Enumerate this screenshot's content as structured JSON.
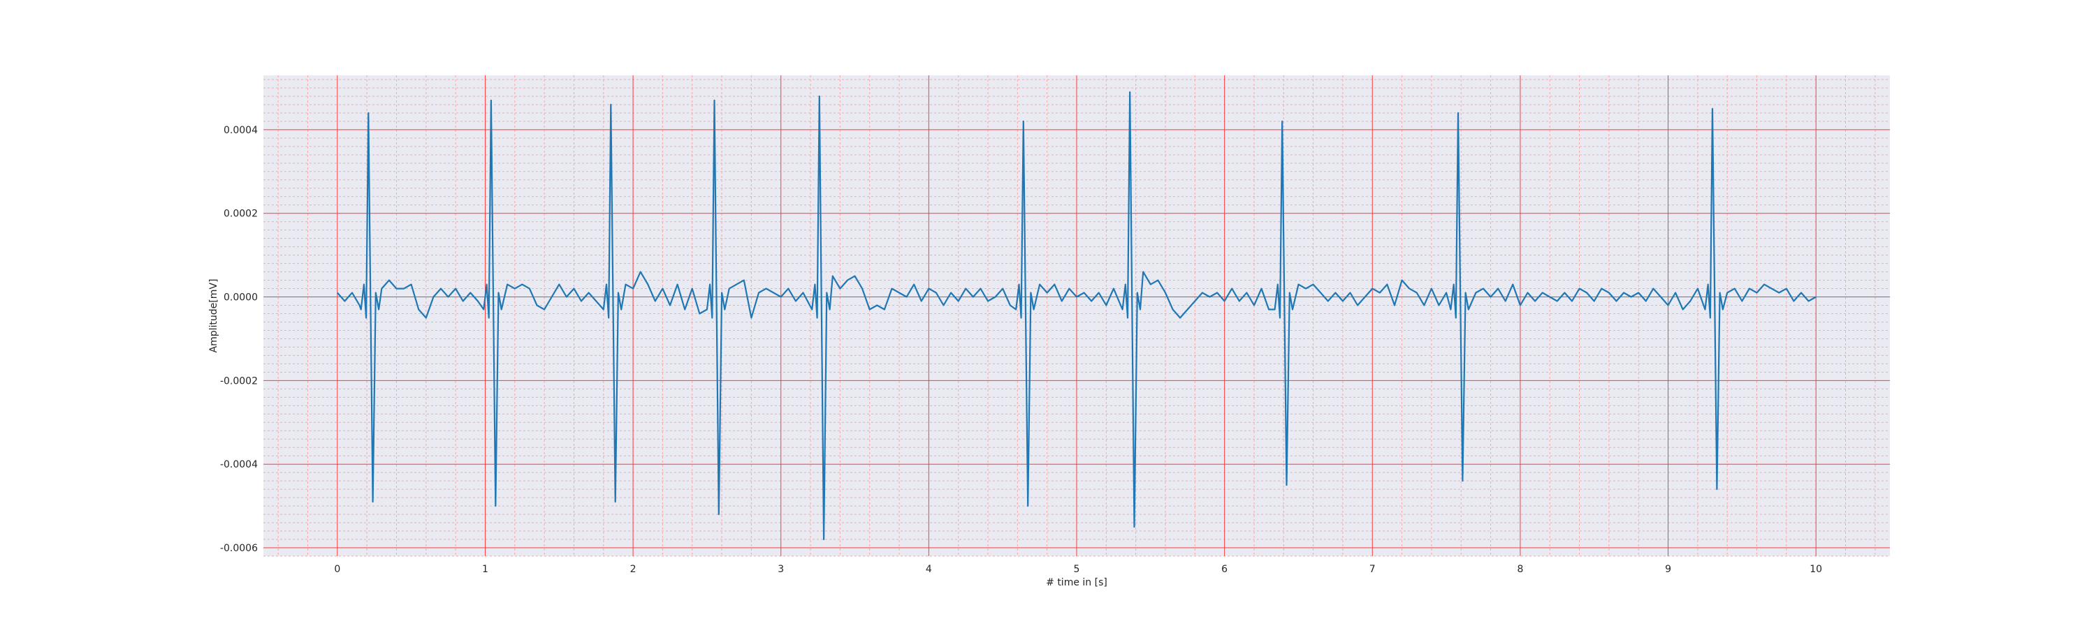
{
  "chart_data": {
    "type": "line",
    "title": "",
    "xlabel": "# time in [s]",
    "ylabel": "Amplitude[mV]",
    "xlim": [
      -0.5,
      10.5
    ],
    "ylim": [
      -0.00062,
      0.00053
    ],
    "xticks": [
      0,
      1,
      2,
      3,
      4,
      5,
      6,
      7,
      8,
      9,
      10
    ],
    "xtick_labels": [
      "0",
      "1",
      "2",
      "3",
      "4",
      "5",
      "6",
      "7",
      "8",
      "9",
      "10"
    ],
    "yticks": [
      -0.0006,
      -0.0004,
      -0.0002,
      0.0,
      0.0002,
      0.0004
    ],
    "ytick_labels": [
      "-0.0006",
      "-0.0004",
      "-0.0002",
      "0.0000",
      "0.0002",
      "0.0004"
    ],
    "grid": true,
    "grid_major_color": "#ff3b3b",
    "grid_minor_color": "#f2aaaa",
    "background_color": "#eaeaf2",
    "line_color": "#1f77b4",
    "series": [
      {
        "beats": [
          {
            "x": 0.21,
            "peak": 0.00044,
            "trough": -0.00049
          },
          {
            "x": 1.04,
            "peak": 0.00047,
            "trough": -0.0005
          },
          {
            "x": 1.85,
            "peak": 0.00046,
            "trough": -0.00049
          },
          {
            "x": 2.55,
            "peak": 0.00047,
            "trough": -0.00052
          },
          {
            "x": 3.26,
            "peak": 0.00048,
            "trough": -0.00058
          },
          {
            "x": 4.64,
            "peak": 0.00042,
            "trough": -0.0005
          },
          {
            "x": 5.36,
            "peak": 0.00049,
            "trough": -0.00055
          },
          {
            "x": 6.39,
            "peak": 0.00042,
            "trough": -0.00045
          },
          {
            "x": 7.58,
            "peak": 0.00044,
            "trough": -0.00044
          },
          {
            "x": 9.3,
            "peak": 0.00045,
            "trough": -0.00046
          }
        ],
        "baseline": [
          [
            0.0,
            1e-05
          ],
          [
            0.05,
            -1e-05
          ],
          [
            0.1,
            1e-05
          ],
          [
            0.15,
            -2e-05
          ],
          [
            0.3,
            2e-05
          ],
          [
            0.35,
            4e-05
          ],
          [
            0.4,
            2e-05
          ],
          [
            0.45,
            2e-05
          ],
          [
            0.5,
            3e-05
          ],
          [
            0.55,
            -3e-05
          ],
          [
            0.6,
            -5e-05
          ],
          [
            0.65,
            0.0
          ],
          [
            0.7,
            2e-05
          ],
          [
            0.75,
            0.0
          ],
          [
            0.8,
            2e-05
          ],
          [
            0.85,
            -1e-05
          ],
          [
            0.9,
            1e-05
          ],
          [
            0.95,
            -1e-05
          ],
          [
            1.15,
            3e-05
          ],
          [
            1.2,
            2e-05
          ],
          [
            1.25,
            3e-05
          ],
          [
            1.3,
            2e-05
          ],
          [
            1.35,
            -2e-05
          ],
          [
            1.4,
            -3e-05
          ],
          [
            1.45,
            0.0
          ],
          [
            1.5,
            3e-05
          ],
          [
            1.55,
            0.0
          ],
          [
            1.6,
            2e-05
          ],
          [
            1.65,
            -1e-05
          ],
          [
            1.7,
            1e-05
          ],
          [
            1.75,
            -1e-05
          ],
          [
            1.95,
            3e-05
          ],
          [
            2.0,
            2e-05
          ],
          [
            2.05,
            6e-05
          ],
          [
            2.1,
            3e-05
          ],
          [
            2.15,
            -1e-05
          ],
          [
            2.2,
            2e-05
          ],
          [
            2.25,
            -2e-05
          ],
          [
            2.3,
            3e-05
          ],
          [
            2.35,
            -3e-05
          ],
          [
            2.4,
            2e-05
          ],
          [
            2.45,
            -4e-05
          ],
          [
            2.65,
            2e-05
          ],
          [
            2.7,
            3e-05
          ],
          [
            2.75,
            4e-05
          ],
          [
            2.8,
            -5e-05
          ],
          [
            2.85,
            1e-05
          ],
          [
            2.9,
            2e-05
          ],
          [
            2.95,
            1e-05
          ],
          [
            3.0,
            0.0
          ],
          [
            3.05,
            2e-05
          ],
          [
            3.1,
            -1e-05
          ],
          [
            3.15,
            1e-05
          ],
          [
            3.35,
            5e-05
          ],
          [
            3.4,
            2e-05
          ],
          [
            3.45,
            4e-05
          ],
          [
            3.5,
            5e-05
          ],
          [
            3.55,
            2e-05
          ],
          [
            3.6,
            -3e-05
          ],
          [
            3.65,
            -2e-05
          ],
          [
            3.7,
            -3e-05
          ],
          [
            3.75,
            2e-05
          ],
          [
            3.8,
            1e-05
          ],
          [
            3.85,
            0.0
          ],
          [
            3.9,
            3e-05
          ],
          [
            3.95,
            -1e-05
          ],
          [
            4.0,
            2e-05
          ],
          [
            4.05,
            1e-05
          ],
          [
            4.1,
            -2e-05
          ],
          [
            4.15,
            1e-05
          ],
          [
            4.2,
            -1e-05
          ],
          [
            4.25,
            2e-05
          ],
          [
            4.3,
            0.0
          ],
          [
            4.35,
            2e-05
          ],
          [
            4.4,
            -1e-05
          ],
          [
            4.45,
            0.0
          ],
          [
            4.5,
            2e-05
          ],
          [
            4.55,
            -2e-05
          ],
          [
            4.75,
            3e-05
          ],
          [
            4.8,
            1e-05
          ],
          [
            4.85,
            3e-05
          ],
          [
            4.9,
            -1e-05
          ],
          [
            4.95,
            2e-05
          ],
          [
            5.0,
            0.0
          ],
          [
            5.05,
            1e-05
          ],
          [
            5.1,
            -1e-05
          ],
          [
            5.15,
            1e-05
          ],
          [
            5.2,
            -2e-05
          ],
          [
            5.25,
            2e-05
          ],
          [
            5.45,
            6e-05
          ],
          [
            5.5,
            3e-05
          ],
          [
            5.55,
            4e-05
          ],
          [
            5.6,
            1e-05
          ],
          [
            5.65,
            -3e-05
          ],
          [
            5.7,
            -5e-05
          ],
          [
            5.75,
            -3e-05
          ],
          [
            5.8,
            -1e-05
          ],
          [
            5.85,
            1e-05
          ],
          [
            5.9,
            0.0
          ],
          [
            5.95,
            1e-05
          ],
          [
            6.0,
            -1e-05
          ],
          [
            6.05,
            2e-05
          ],
          [
            6.1,
            -1e-05
          ],
          [
            6.15,
            1e-05
          ],
          [
            6.2,
            -2e-05
          ],
          [
            6.25,
            2e-05
          ],
          [
            6.3,
            -3e-05
          ],
          [
            6.5,
            3e-05
          ],
          [
            6.55,
            2e-05
          ],
          [
            6.6,
            3e-05
          ],
          [
            6.65,
            1e-05
          ],
          [
            6.7,
            -1e-05
          ],
          [
            6.75,
            1e-05
          ],
          [
            6.8,
            -1e-05
          ],
          [
            6.85,
            1e-05
          ],
          [
            6.9,
            -2e-05
          ],
          [
            6.95,
            0.0
          ],
          [
            7.0,
            2e-05
          ],
          [
            7.05,
            1e-05
          ],
          [
            7.1,
            3e-05
          ],
          [
            7.15,
            -2e-05
          ],
          [
            7.2,
            4e-05
          ],
          [
            7.25,
            2e-05
          ],
          [
            7.3,
            1e-05
          ],
          [
            7.35,
            -2e-05
          ],
          [
            7.4,
            2e-05
          ],
          [
            7.45,
            -2e-05
          ],
          [
            7.5,
            1e-05
          ],
          [
            7.7,
            1e-05
          ],
          [
            7.75,
            2e-05
          ],
          [
            7.8,
            0.0
          ],
          [
            7.85,
            2e-05
          ],
          [
            7.9,
            -1e-05
          ],
          [
            7.95,
            3e-05
          ],
          [
            8.0,
            -2e-05
          ],
          [
            8.05,
            1e-05
          ],
          [
            8.1,
            -1e-05
          ],
          [
            8.15,
            1e-05
          ],
          [
            8.2,
            0.0
          ],
          [
            8.25,
            -1e-05
          ],
          [
            8.3,
            1e-05
          ],
          [
            8.35,
            -1e-05
          ],
          [
            8.4,
            2e-05
          ],
          [
            8.45,
            1e-05
          ],
          [
            8.5,
            -1e-05
          ],
          [
            8.55,
            2e-05
          ],
          [
            8.6,
            1e-05
          ],
          [
            8.65,
            -1e-05
          ],
          [
            8.7,
            1e-05
          ],
          [
            8.75,
            0.0
          ],
          [
            8.8,
            1e-05
          ],
          [
            8.85,
            -1e-05
          ],
          [
            8.9,
            2e-05
          ],
          [
            8.95,
            0.0
          ],
          [
            9.0,
            -2e-05
          ],
          [
            9.05,
            1e-05
          ],
          [
            9.1,
            -3e-05
          ],
          [
            9.15,
            -1e-05
          ],
          [
            9.2,
            2e-05
          ],
          [
            9.4,
            1e-05
          ],
          [
            9.45,
            2e-05
          ],
          [
            9.5,
            -1e-05
          ],
          [
            9.55,
            2e-05
          ],
          [
            9.6,
            1e-05
          ],
          [
            9.65,
            3e-05
          ],
          [
            9.7,
            2e-05
          ],
          [
            9.75,
            1e-05
          ],
          [
            9.8,
            2e-05
          ],
          [
            9.85,
            -1e-05
          ],
          [
            9.9,
            1e-05
          ],
          [
            9.95,
            -1e-05
          ],
          [
            10.0,
            0.0
          ]
        ]
      }
    ]
  }
}
